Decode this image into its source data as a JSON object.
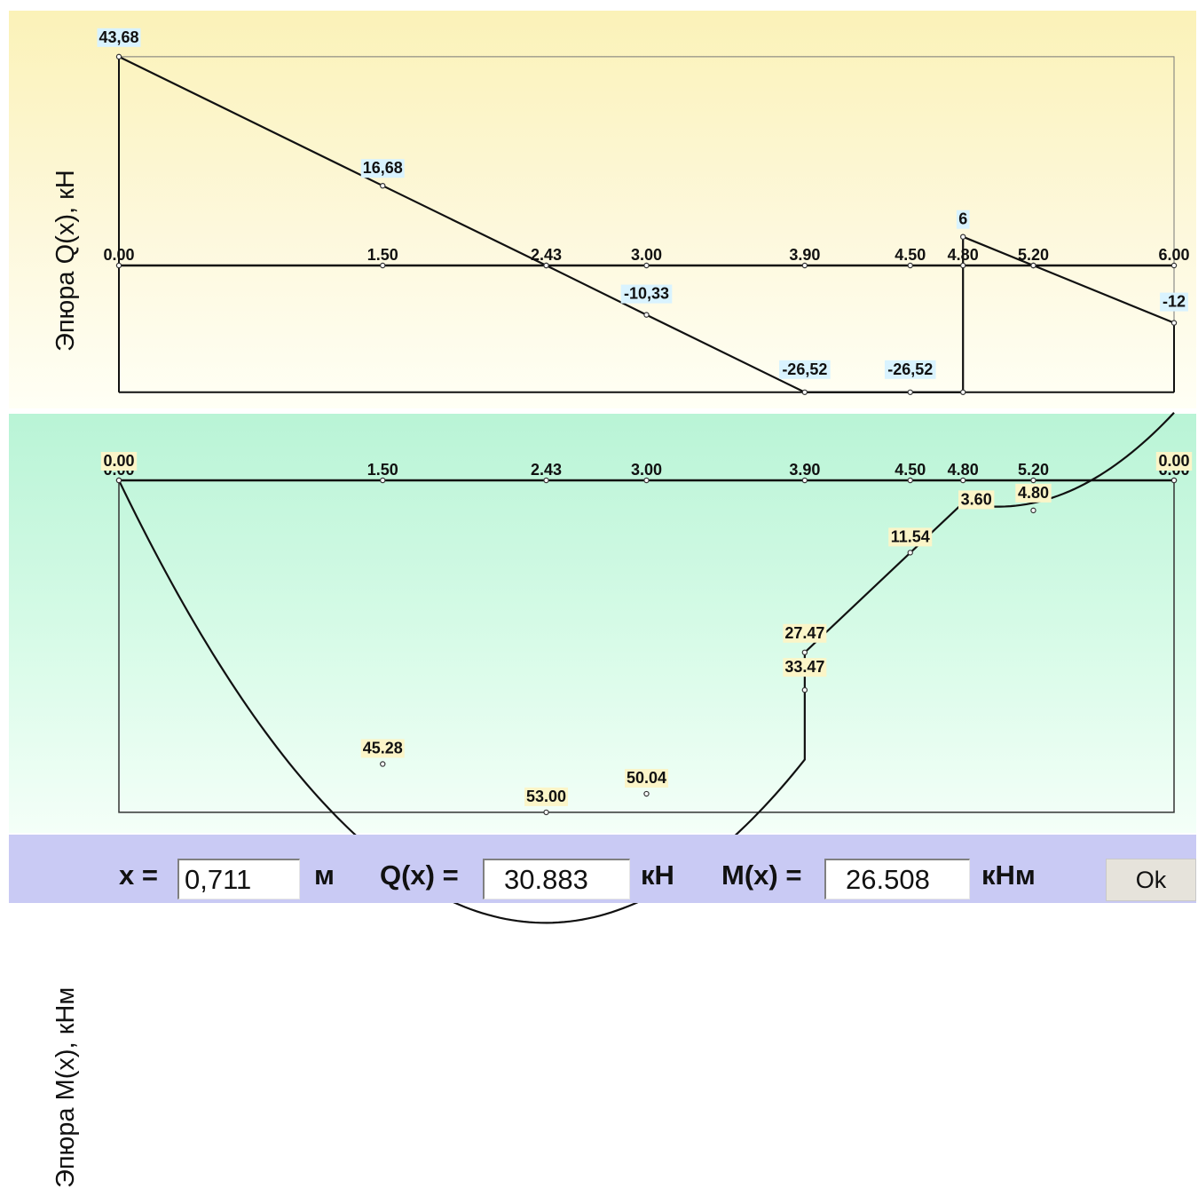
{
  "chart_data": [
    {
      "type": "line",
      "ylabel": "Эпюра Q(x), кН",
      "x_ticks": [
        "0.00",
        "1.50",
        "2.43",
        "3.00",
        "3.90",
        "4.50",
        "4.80",
        "5.20",
        "6.00"
      ],
      "series": [
        {
          "x": [
            0.0,
            1.5,
            2.43,
            3.0,
            3.9,
            4.5,
            4.8,
            4.8,
            5.2,
            6.0
          ],
          "y": [
            43.68,
            16.68,
            0,
            -10.33,
            -26.52,
            -26.52,
            -26.52,
            6,
            0,
            -12
          ]
        }
      ],
      "point_labels": [
        {
          "x": 0.0,
          "y": 43.68,
          "text": "43,68"
        },
        {
          "x": 1.5,
          "y": 16.68,
          "text": "16,68"
        },
        {
          "x": 3.0,
          "y": -10.33,
          "text": "-10,33"
        },
        {
          "x": 3.9,
          "y": -26.52,
          "text": "-26,52"
        },
        {
          "x": 4.5,
          "y": -26.52,
          "text": "-26,52"
        },
        {
          "x": 4.8,
          "y": 6,
          "text": "6"
        },
        {
          "x": 6.0,
          "y": -12,
          "text": "-12"
        }
      ],
      "xlim": [
        0,
        6
      ],
      "ylim": [
        -26.52,
        43.68
      ]
    },
    {
      "type": "line",
      "ylabel": "Эпюра M(x), кНм",
      "x_ticks": [
        "0.00",
        "1.50",
        "2.43",
        "3.00",
        "3.90",
        "4.50",
        "4.80",
        "5.20",
        "6.00"
      ],
      "inverted_y": true,
      "series": [
        {
          "x": [
            0.0,
            1.5,
            2.43,
            3.0,
            3.9,
            3.9,
            4.5,
            4.8,
            5.2,
            6.0
          ],
          "y": [
            0.0,
            45.28,
            53.0,
            50.04,
            33.47,
            27.47,
            11.54,
            3.6,
            4.8,
            0.0
          ]
        }
      ],
      "point_labels": [
        {
          "x": 0.0,
          "y": 0.0,
          "text": "0.00"
        },
        {
          "x": 6.0,
          "y": 0.0,
          "text": "0.00"
        },
        {
          "x": 1.5,
          "y": 45.28,
          "text": "45.28"
        },
        {
          "x": 2.43,
          "y": 53.0,
          "text": "53.00"
        },
        {
          "x": 3.0,
          "y": 50.04,
          "text": "50.04"
        },
        {
          "x": 3.9,
          "y": 33.47,
          "text": "33.47"
        },
        {
          "x": 3.9,
          "y": 27.47,
          "text": "27.47"
        },
        {
          "x": 4.5,
          "y": 11.54,
          "text": "11.54"
        },
        {
          "x": 4.8,
          "y": 3.6,
          "text": "3.60"
        },
        {
          "x": 5.2,
          "y": 4.8,
          "text": "4.80"
        }
      ],
      "xlim": [
        0,
        6
      ],
      "ylim": [
        0,
        53.0
      ]
    }
  ],
  "controls": {
    "x_label": "x =",
    "x_value": "0,711",
    "x_unit": "м",
    "q_label": "Q(x) =",
    "q_value": "30.883",
    "q_unit": "кН",
    "m_label": "M(x) =",
    "m_value": "26.508",
    "m_unit": "кНм",
    "ok_label": "Ok"
  }
}
